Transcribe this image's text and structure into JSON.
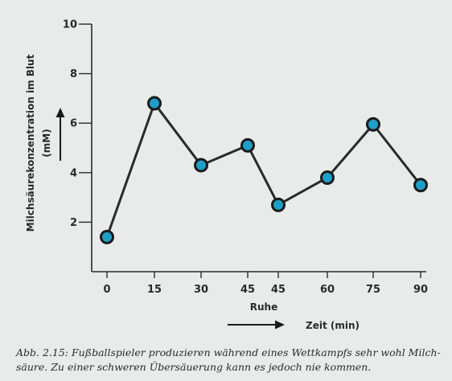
{
  "chart_data": {
    "type": "line",
    "x_categories": [
      "0",
      "15",
      "30",
      "45",
      "45",
      "60",
      "75",
      "90"
    ],
    "y": [
      1.4,
      6.8,
      4.3,
      5.1,
      2.7,
      3.8,
      5.95,
      3.5
    ],
    "ylim": [
      0,
      10
    ],
    "y_ticks": [
      "10",
      "8",
      "6",
      "4",
      "2"
    ],
    "xlabel": "Zeit (min)",
    "x_annotation": "Ruhe",
    "ylabel_line1": "Milchsäurekonzentration im Blut",
    "ylabel_line2": "(mM)",
    "line_color": "#2a2a2a",
    "marker_fill": "#1e9fc8",
    "marker_stroke": "#1b1b1b"
  },
  "caption": "Abb. 2.15: Fußballspieler produzieren während eines Wettkampfs sehr wohl Milch-\nsäure. Zu einer schweren Übersäuerung kann es jedoch nie kommen."
}
